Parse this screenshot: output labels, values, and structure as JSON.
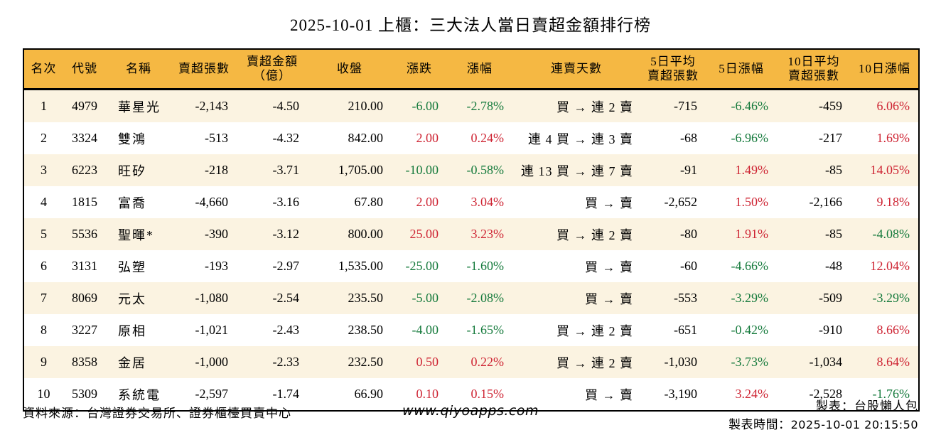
{
  "title": "2025-10-01 上櫃：三大法人當日賣超金額排行榜",
  "colors": {
    "header_bg": "#f5b843",
    "row_alt_bg": "#fbf3e1",
    "positive_red": "#ce2433",
    "negative_green": "#157a3c"
  },
  "chart_data": {
    "type": "table",
    "title": "2025-10-01 上櫃：三大法人當日賣超金額排行榜",
    "columns": [
      "名次",
      "代號",
      "名稱",
      "賣超張數",
      "賣超金額\n（億）",
      "收盤",
      "漲跌",
      "漲幅",
      "連賣天數",
      "5日平均\n賣超張數",
      "5日漲幅",
      "10日平均\n賣超張數",
      "10日漲幅"
    ],
    "rows": [
      {
        "rank": "1",
        "code": "4979",
        "name": "華星光",
        "sell_volume": "-2,143",
        "sell_amount": "-4.50",
        "close": "210.00",
        "change": "-6.00",
        "change_pct": "-2.78%",
        "streak": "買 → 連 2 賣",
        "avg5": "-715",
        "pct5": "-6.46%",
        "avg10": "-459",
        "pct10": "6.06%"
      },
      {
        "rank": "2",
        "code": "3324",
        "name": "雙鴻",
        "sell_volume": "-513",
        "sell_amount": "-4.32",
        "close": "842.00",
        "change": "2.00",
        "change_pct": "0.24%",
        "streak": "連 4 買 → 連 3 賣",
        "avg5": "-68",
        "pct5": "-6.96%",
        "avg10": "-217",
        "pct10": "1.69%"
      },
      {
        "rank": "3",
        "code": "6223",
        "name": "旺矽",
        "sell_volume": "-218",
        "sell_amount": "-3.71",
        "close": "1,705.00",
        "change": "-10.00",
        "change_pct": "-0.58%",
        "streak": "連 13 買 → 連 7 賣",
        "avg5": "-91",
        "pct5": "1.49%",
        "avg10": "-85",
        "pct10": "14.05%"
      },
      {
        "rank": "4",
        "code": "1815",
        "name": "富喬",
        "sell_volume": "-4,660",
        "sell_amount": "-3.16",
        "close": "67.80",
        "change": "2.00",
        "change_pct": "3.04%",
        "streak": "買 → 賣",
        "avg5": "-2,652",
        "pct5": "1.50%",
        "avg10": "-2,166",
        "pct10": "9.18%"
      },
      {
        "rank": "5",
        "code": "5536",
        "name": "聖暉*",
        "sell_volume": "-390",
        "sell_amount": "-3.12",
        "close": "800.00",
        "change": "25.00",
        "change_pct": "3.23%",
        "streak": "買 → 連 2 賣",
        "avg5": "-80",
        "pct5": "1.91%",
        "avg10": "-85",
        "pct10": "-4.08%"
      },
      {
        "rank": "6",
        "code": "3131",
        "name": "弘塑",
        "sell_volume": "-193",
        "sell_amount": "-2.97",
        "close": "1,535.00",
        "change": "-25.00",
        "change_pct": "-1.60%",
        "streak": "買 → 賣",
        "avg5": "-60",
        "pct5": "-4.66%",
        "avg10": "-48",
        "pct10": "12.04%"
      },
      {
        "rank": "7",
        "code": "8069",
        "name": "元太",
        "sell_volume": "-1,080",
        "sell_amount": "-2.54",
        "close": "235.50",
        "change": "-5.00",
        "change_pct": "-2.08%",
        "streak": "買 → 賣",
        "avg5": "-553",
        "pct5": "-3.29%",
        "avg10": "-509",
        "pct10": "-3.29%"
      },
      {
        "rank": "8",
        "code": "3227",
        "name": "原相",
        "sell_volume": "-1,021",
        "sell_amount": "-2.43",
        "close": "238.50",
        "change": "-4.00",
        "change_pct": "-1.65%",
        "streak": "買 → 連 2 賣",
        "avg5": "-651",
        "pct5": "-0.42%",
        "avg10": "-910",
        "pct10": "8.66%"
      },
      {
        "rank": "9",
        "code": "8358",
        "name": "金居",
        "sell_volume": "-1,000",
        "sell_amount": "-2.33",
        "close": "232.50",
        "change": "0.50",
        "change_pct": "0.22%",
        "streak": "買 → 連 2 賣",
        "avg5": "-1,030",
        "pct5": "-3.73%",
        "avg10": "-1,034",
        "pct10": "8.64%"
      },
      {
        "rank": "10",
        "code": "5309",
        "name": "系統電",
        "sell_volume": "-2,597",
        "sell_amount": "-1.74",
        "close": "66.90",
        "change": "0.10",
        "change_pct": "0.15%",
        "streak": "買 → 賣",
        "avg5": "-3,190",
        "pct5": "3.24%",
        "avg10": "-2,528",
        "pct10": "-1.76%"
      }
    ]
  },
  "footer": {
    "source": "資料來源：台灣證券交易所、證券櫃檯買賣中心",
    "url": "www.qiyoapps.com",
    "maker": "製表：台股懶人包",
    "time_label": "製表時間：",
    "time_value": "2025-10-01 20:15:50"
  }
}
